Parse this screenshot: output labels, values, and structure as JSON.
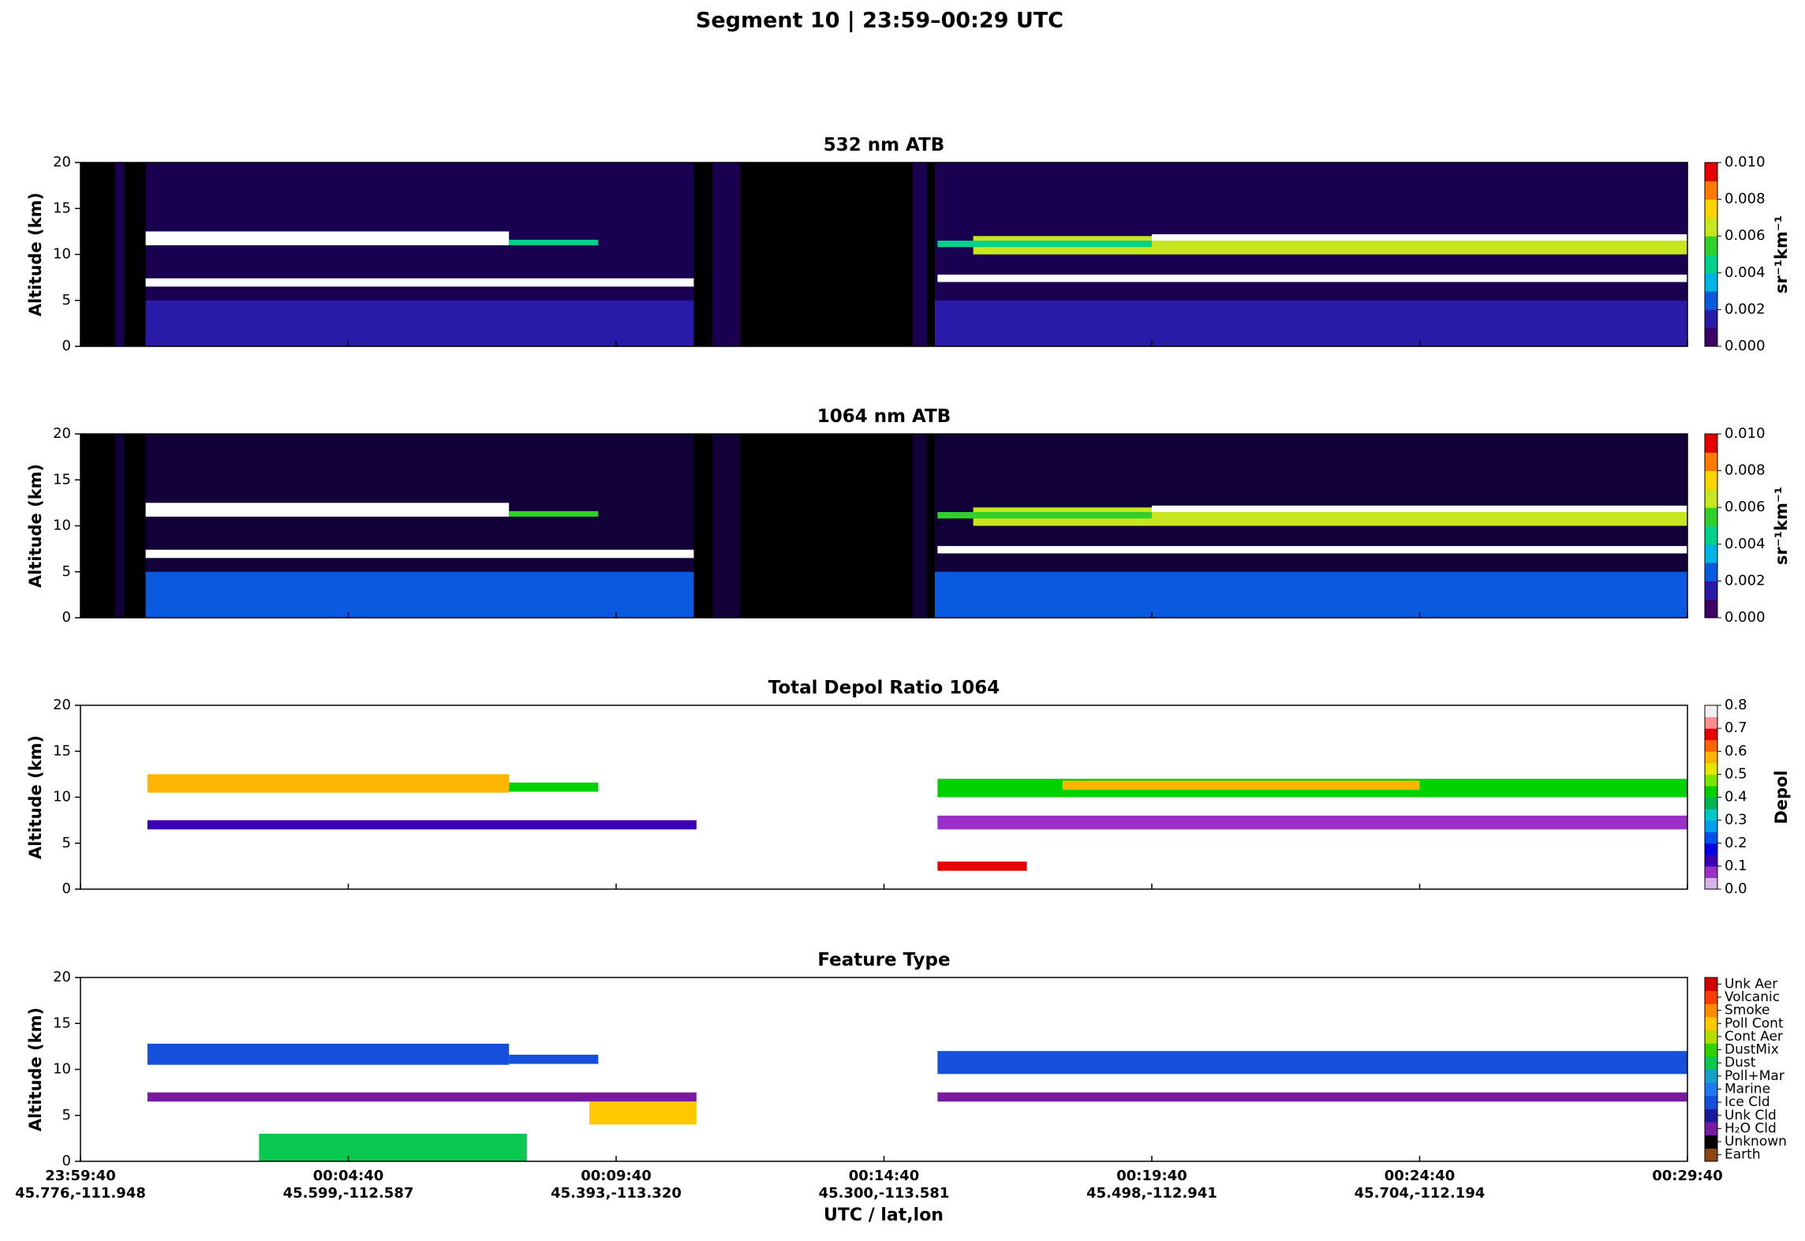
{
  "figure": {
    "title": "Segment 10  |  23:59–00:29 UTC",
    "xlabel": "UTC / lat,lon",
    "xlim": [
      0,
      1800
    ],
    "xticks": [
      {
        "value": 0,
        "label": "23:59:40",
        "latlon": "45.776,-111.948"
      },
      {
        "value": 300,
        "label": "00:04:40",
        "latlon": "45.599,-112.587"
      },
      {
        "value": 600,
        "label": "00:09:40",
        "latlon": "45.393,-113.320"
      },
      {
        "value": 900,
        "label": "00:14:40",
        "latlon": "45.300,-113.581"
      },
      {
        "value": 1200,
        "label": "00:19:40",
        "latlon": "45.498,-112.941"
      },
      {
        "value": 1500,
        "label": "00:24:40",
        "latlon": "45.704,-112.194"
      },
      {
        "value": 1800,
        "label": "00:29:40"
      }
    ]
  },
  "chart_data": [
    {
      "type": "heatmap",
      "title": "532 nm ATB",
      "ylabel": "Altitude (km)",
      "ylim": [
        0,
        20
      ],
      "yticks": [
        0,
        5,
        10,
        15,
        20
      ],
      "background": "#1a0050",
      "colorbar_label": "sr⁻¹km⁻¹",
      "cbar_lim": [
        0,
        0.01
      ],
      "colors": [
        "#3d0066",
        "#2a1aa8",
        "#0a5ae0",
        "#00b4e6",
        "#00d28c",
        "#2fd02a",
        "#c8e61e",
        "#ffd400",
        "#ff7a00",
        "#e60000"
      ],
      "over_color": "#ffffff",
      "cbar_ticks": [
        {
          "value": 0,
          "label": "0.000"
        },
        {
          "value": 0.002,
          "label": "0.002"
        },
        {
          "value": 0.004,
          "label": "0.004"
        },
        {
          "value": 0.006,
          "label": "0.006"
        },
        {
          "value": 0.008,
          "label": "0.008"
        },
        {
          "value": 0.01,
          "label": "0.010"
        }
      ],
      "no_data": [
        [
          0,
          39
        ],
        [
          49,
          73
        ],
        [
          687,
          708
        ],
        [
          739,
          932
        ],
        [
          948,
          957
        ]
      ],
      "layers": [
        {
          "x": [
            73,
            687
          ],
          "y": [
            0,
            5
          ],
          "value": 0.0015
        },
        {
          "x": [
            957,
            1800
          ],
          "y": [
            0,
            5
          ],
          "value": 0.0015
        },
        {
          "x": [
            73,
            480
          ],
          "y": [
            11,
            12.5
          ],
          "value": 0.012
        },
        {
          "x": [
            480,
            580
          ],
          "y": [
            11,
            11.6
          ],
          "value": 0.004
        },
        {
          "x": [
            1000,
            1800
          ],
          "y": [
            10,
            12
          ],
          "value": 0.006
        },
        {
          "x": [
            1200,
            1800
          ],
          "y": [
            11.5,
            12.2
          ],
          "value": 0.012
        },
        {
          "x": [
            960,
            1200
          ],
          "y": [
            10.8,
            11.5
          ],
          "value": 0.004
        },
        {
          "x": [
            73,
            687
          ],
          "y": [
            6.5,
            7.4
          ],
          "value": 0.012
        },
        {
          "x": [
            960,
            1800
          ],
          "y": [
            7,
            7.8
          ],
          "value": 0.012
        }
      ]
    },
    {
      "type": "heatmap",
      "title": "1064 nm ATB",
      "ylabel": "Altitude (km)",
      "ylim": [
        0,
        20
      ],
      "yticks": [
        0,
        5,
        10,
        15,
        20
      ],
      "background": "#120038",
      "colorbar_label": "sr⁻¹km⁻¹",
      "cbar_lim": [
        0,
        0.01
      ],
      "colors": [
        "#3d0066",
        "#2a1aa8",
        "#0a5ae0",
        "#00b4e6",
        "#00d28c",
        "#2fd02a",
        "#c8e61e",
        "#ffd400",
        "#ff7a00",
        "#e60000"
      ],
      "over_color": "#ffffff",
      "cbar_ticks": [
        {
          "value": 0,
          "label": "0.000"
        },
        {
          "value": 0.002,
          "label": "0.002"
        },
        {
          "value": 0.004,
          "label": "0.004"
        },
        {
          "value": 0.006,
          "label": "0.006"
        },
        {
          "value": 0.008,
          "label": "0.008"
        },
        {
          "value": 0.01,
          "label": "0.010"
        }
      ],
      "no_data": [
        [
          0,
          39
        ],
        [
          49,
          73
        ],
        [
          687,
          708
        ],
        [
          739,
          932
        ],
        [
          948,
          957
        ]
      ],
      "layers": [
        {
          "x": [
            73,
            687
          ],
          "y": [
            0,
            5
          ],
          "value": 0.002
        },
        {
          "x": [
            957,
            1800
          ],
          "y": [
            0,
            5
          ],
          "value": 0.002
        },
        {
          "x": [
            73,
            480
          ],
          "y": [
            11,
            12.5
          ],
          "value": 0.012
        },
        {
          "x": [
            480,
            580
          ],
          "y": [
            11,
            11.6
          ],
          "value": 0.005
        },
        {
          "x": [
            1000,
            1800
          ],
          "y": [
            10,
            12
          ],
          "value": 0.006
        },
        {
          "x": [
            1200,
            1800
          ],
          "y": [
            11.5,
            12.2
          ],
          "value": 0.012
        },
        {
          "x": [
            960,
            1200
          ],
          "y": [
            10.8,
            11.5
          ],
          "value": 0.005
        },
        {
          "x": [
            73,
            687
          ],
          "y": [
            6.5,
            7.4
          ],
          "value": 0.012
        },
        {
          "x": [
            960,
            1800
          ],
          "y": [
            7,
            7.8
          ],
          "value": 0.012
        }
      ]
    },
    {
      "type": "heatmap",
      "title": "Total Depol Ratio 1064",
      "ylabel": "Altitude (km)",
      "ylim": [
        0,
        20
      ],
      "yticks": [
        0,
        5,
        10,
        15,
        20
      ],
      "background": "#ffffff",
      "colorbar_label": "Depol",
      "cbar_lim": [
        0,
        0.8
      ],
      "colors": [
        "#d6b4e6",
        "#9b30c8",
        "#3c00b4",
        "#0000e6",
        "#0050f0",
        "#00a0f0",
        "#00c8c8",
        "#00b450",
        "#00d200",
        "#78e600",
        "#e6e600",
        "#ffb400",
        "#ff6400",
        "#e60000",
        "#ff8c8c",
        "#f0f0f0"
      ],
      "cbar_ticks": [
        {
          "value": 0,
          "label": "0.0"
        },
        {
          "value": 0.1,
          "label": "0.1"
        },
        {
          "value": 0.2,
          "label": "0.2"
        },
        {
          "value": 0.3,
          "label": "0.3"
        },
        {
          "value": 0.4,
          "label": "0.4"
        },
        {
          "value": 0.5,
          "label": "0.5"
        },
        {
          "value": 0.6,
          "label": "0.6"
        },
        {
          "value": 0.7,
          "label": "0.7"
        },
        {
          "value": 0.8,
          "label": "0.8"
        }
      ],
      "layers": [
        {
          "x": [
            75,
            480
          ],
          "y": [
            10.5,
            12.5
          ],
          "value": 0.55
        },
        {
          "x": [
            480,
            580
          ],
          "y": [
            10.6,
            11.6
          ],
          "value": 0.42
        },
        {
          "x": [
            960,
            1800
          ],
          "y": [
            10,
            12
          ],
          "value": 0.42
        },
        {
          "x": [
            1100,
            1500
          ],
          "y": [
            10.8,
            11.8
          ],
          "value": 0.6
        },
        {
          "x": [
            75,
            690
          ],
          "y": [
            6.5,
            7.5
          ],
          "value": 0.1
        },
        {
          "x": [
            960,
            1800
          ],
          "y": [
            6.5,
            8
          ],
          "value": 0.08
        },
        {
          "x": [
            960,
            1060
          ],
          "y": [
            2,
            3
          ],
          "value": 0.65
        }
      ]
    },
    {
      "type": "heatmap",
      "title": "Feature Type",
      "ylabel": "Altitude (km)",
      "ylim": [
        0,
        20
      ],
      "yticks": [
        0,
        5,
        10,
        15,
        20
      ],
      "background": "#ffffff",
      "cbar_lim": [
        0,
        14
      ],
      "colors": [
        "#8b4513",
        "#000000",
        "#7a1aa0",
        "#1a1aa0",
        "#1450dc",
        "#1e78f0",
        "#14a0c8",
        "#0ac850",
        "#32d200",
        "#b4dc00",
        "#ffc800",
        "#ff8c00",
        "#ff3c00",
        "#d20000"
      ],
      "cbar_ticks": [
        {
          "value": 0.5,
          "label": "Earth"
        },
        {
          "value": 1.5,
          "label": "Unknown"
        },
        {
          "value": 2.5,
          "label": "H₂O Cld"
        },
        {
          "value": 3.5,
          "label": "Unk Cld"
        },
        {
          "value": 4.5,
          "label": "Ice Cld"
        },
        {
          "value": 5.5,
          "label": "Marine"
        },
        {
          "value": 6.5,
          "label": "Poll+Mar"
        },
        {
          "value": 7.5,
          "label": "Dust"
        },
        {
          "value": 8.5,
          "label": "DustMix"
        },
        {
          "value": 9.5,
          "label": "Cont Aer"
        },
        {
          "value": 10.5,
          "label": "Poll Cont"
        },
        {
          "value": 11.5,
          "label": "Smoke"
        },
        {
          "value": 12.5,
          "label": "Volcanic"
        },
        {
          "value": 13.5,
          "label": "Unk Aer"
        }
      ],
      "layers": [
        {
          "x": [
            75,
            480
          ],
          "y": [
            10.5,
            12.8
          ],
          "value": 4
        },
        {
          "x": [
            480,
            580
          ],
          "y": [
            10.6,
            11.6
          ],
          "value": 4
        },
        {
          "x": [
            960,
            1800
          ],
          "y": [
            9.5,
            12
          ],
          "value": 4
        },
        {
          "x": [
            75,
            690
          ],
          "y": [
            6.5,
            7.5
          ],
          "value": 2
        },
        {
          "x": [
            960,
            1800
          ],
          "y": [
            6.5,
            7.5
          ],
          "value": 2
        },
        {
          "x": [
            570,
            690
          ],
          "y": [
            4,
            6.5
          ],
          "value": 10
        },
        {
          "x": [
            200,
            500
          ],
          "y": [
            0,
            3
          ],
          "value": 7
        }
      ]
    }
  ]
}
